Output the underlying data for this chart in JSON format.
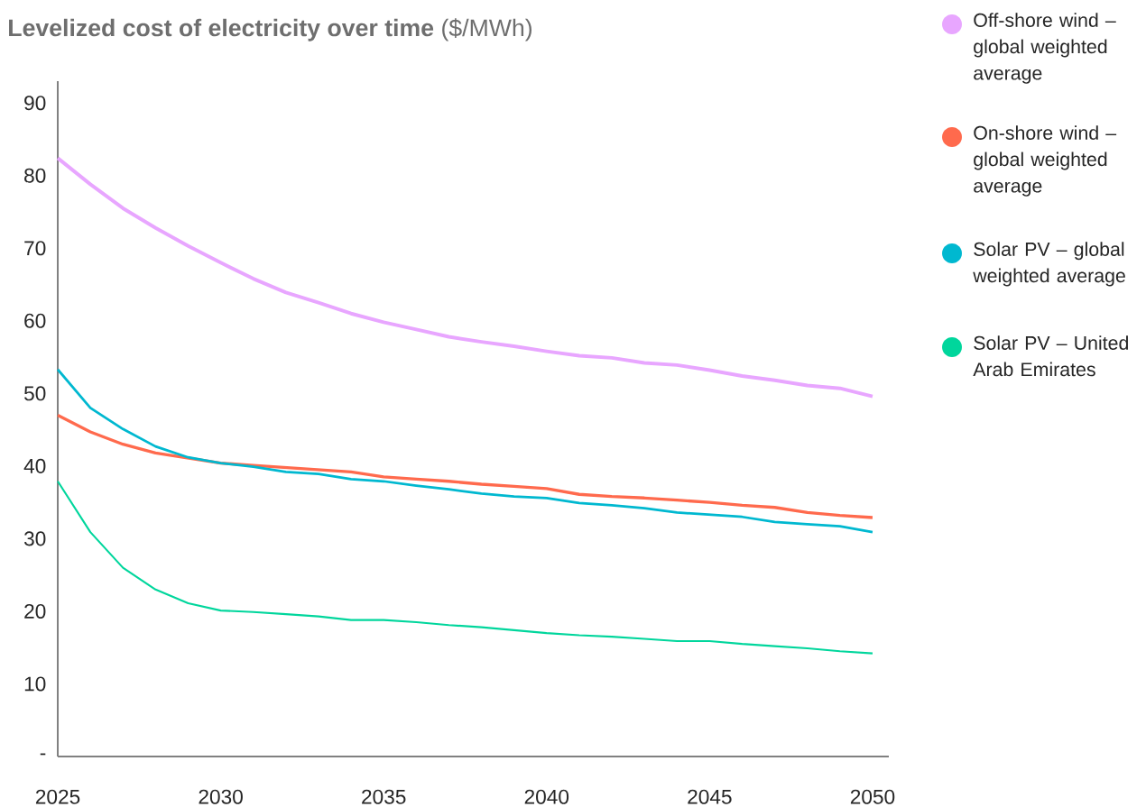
{
  "chart_data": {
    "type": "line",
    "title": "**Levelized cost of electricity over time** ($/MWh)",
    "x": [
      2025,
      2026,
      2027,
      2028,
      2029,
      2030,
      2031,
      2032,
      2033,
      2034,
      2035,
      2036,
      2037,
      2038,
      2039,
      2040,
      2041,
      2042,
      2043,
      2044,
      2045,
      2046,
      2047,
      2048,
      2049,
      2050
    ],
    "series": [
      {
        "name": "Off-shore wind – global weighted average",
        "color": "#e8a6ff",
        "values": [
          82.4,
          78.8,
          75.5,
          72.8,
          70.3,
          68.0,
          65.8,
          63.9,
          62.5,
          61.0,
          59.8,
          58.8,
          57.8,
          57.1,
          56.5,
          55.8,
          55.2,
          54.9,
          54.2,
          53.9,
          53.2,
          52.4,
          51.8,
          51.1,
          50.7,
          49.6
        ]
      },
      {
        "name": "On-shore wind – global weighted average",
        "color": "#ff6a4d",
        "values": [
          47.0,
          44.7,
          43.0,
          41.8,
          41.1,
          40.4,
          40.1,
          39.8,
          39.5,
          39.2,
          38.5,
          38.2,
          37.9,
          37.5,
          37.2,
          36.9,
          36.1,
          35.8,
          35.6,
          35.3,
          35.0,
          34.6,
          34.3,
          33.6,
          33.2,
          32.9
        ]
      },
      {
        "name": "Solar PV – global weighted average",
        "color": "#00b8d0",
        "values": [
          53.3,
          48.0,
          45.1,
          42.7,
          41.2,
          40.4,
          39.9,
          39.2,
          38.9,
          38.2,
          37.9,
          37.3,
          36.8,
          36.2,
          35.8,
          35.6,
          34.9,
          34.6,
          34.2,
          33.6,
          33.3,
          33.0,
          32.3,
          32.0,
          31.7,
          30.9
        ]
      },
      {
        "name": "Solar PV – United Arab Emirates",
        "color": "#00d69c",
        "values": [
          37.9,
          30.9,
          26.0,
          23.0,
          21.1,
          20.1,
          19.9,
          19.6,
          19.3,
          18.8,
          18.8,
          18.5,
          18.1,
          17.8,
          17.4,
          17.0,
          16.7,
          16.5,
          16.2,
          15.9,
          15.9,
          15.5,
          15.2,
          14.9,
          14.5,
          14.2
        ]
      }
    ],
    "xlim": [
      2025,
      2050.5
    ],
    "xticks": [
      2025,
      2030,
      2035,
      2040,
      2045,
      2050
    ],
    "ylim": [
      0,
      93
    ],
    "yticks": [
      {
        "value": 0,
        "label": "-"
      },
      10,
      20,
      30,
      40,
      50,
      60,
      70,
      80,
      90
    ],
    "legend": "right",
    "grid": false,
    "marker": "none",
    "line_style": "solid"
  }
}
